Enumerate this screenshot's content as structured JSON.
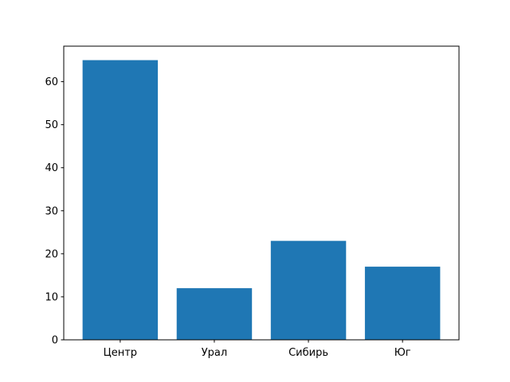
{
  "chart_data": {
    "type": "bar",
    "title": "",
    "xlabel": "",
    "ylabel": "",
    "categories": [
      "Центр",
      "Урал",
      "Сибирь",
      "Юг"
    ],
    "values": [
      65,
      12,
      23,
      17
    ],
    "ylim": [
      0,
      68.25
    ],
    "yticks": [
      0,
      10,
      20,
      30,
      40,
      50,
      60
    ],
    "grid": false,
    "legend": "none",
    "bar_color": "#1f77b4"
  }
}
